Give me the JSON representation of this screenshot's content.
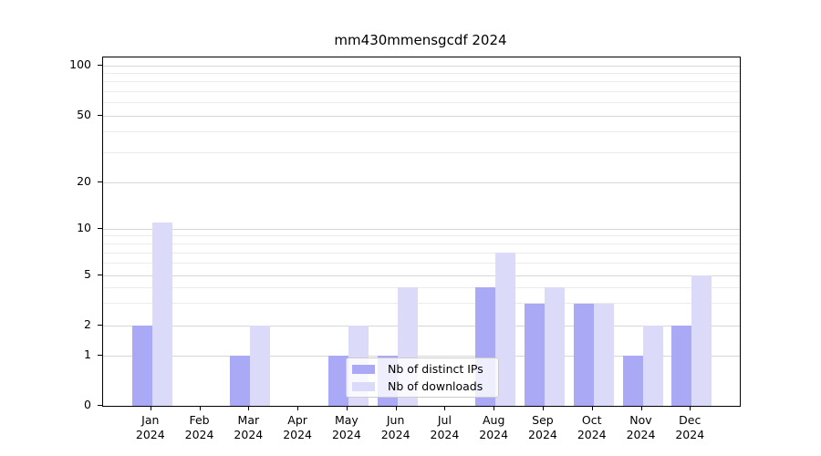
{
  "title": "mm430mmensgcdf 2024",
  "y_axis": {
    "tick_labels": [
      "100",
      "50",
      "20",
      "10",
      "5",
      "2",
      "1",
      "0"
    ]
  },
  "x_axis": {
    "year": "2024",
    "months": [
      "Jan",
      "Feb",
      "Mar",
      "Apr",
      "May",
      "Jun",
      "Jul",
      "Aug",
      "Sep",
      "Oct",
      "Nov",
      "Dec"
    ]
  },
  "chart_data": {
    "type": "bar",
    "title": "mm430mmensgcdf 2024",
    "categories": [
      "Jan 2024",
      "Feb 2024",
      "Mar 2024",
      "Apr 2024",
      "May 2024",
      "Jun 2024",
      "Jul 2024",
      "Aug 2024",
      "Sep 2024",
      "Oct 2024",
      "Nov 2024",
      "Dec 2024"
    ],
    "series": [
      {
        "name": "Nb of distinct IPs",
        "color": "#a9a9f5",
        "values": [
          2,
          0,
          1,
          0,
          1,
          1,
          0,
          4,
          3,
          3,
          1,
          2
        ]
      },
      {
        "name": "Nb of downloads",
        "color": "#dbdbf9",
        "values": [
          11,
          0,
          2,
          0,
          2,
          4,
          0,
          7,
          4,
          3,
          2,
          5
        ]
      }
    ],
    "yscale": "log-like",
    "ylim": [
      0,
      110
    ],
    "major_yticks": [
      0,
      1,
      2,
      5,
      10,
      20,
      50,
      100
    ],
    "minor_yticks": [
      3,
      4,
      6,
      7,
      8,
      9,
      30,
      40,
      60,
      70,
      80,
      90
    ],
    "grid": "horizontal",
    "legend_position": "lower center",
    "colors": {
      "major_grid": "#d7d7d7",
      "minor_grid": "#ebebeb",
      "spine": "#000000"
    }
  }
}
